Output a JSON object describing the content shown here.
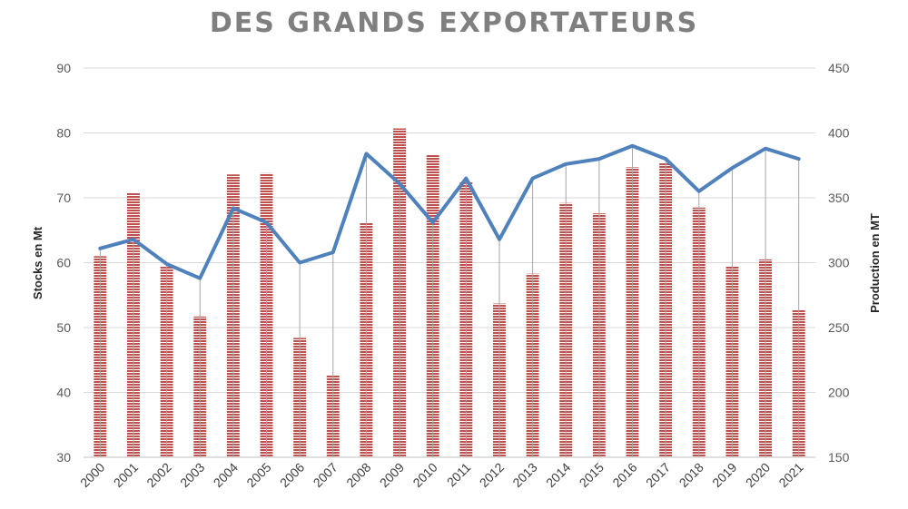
{
  "chart_data": {
    "type": "bar",
    "title": "DES GRANDS EXPORTATEURS",
    "ylabel": "Stocks en Mt",
    "y2label": "Production  en MT",
    "ylim": [
      30,
      90
    ],
    "y2lim": [
      150,
      450
    ],
    "y_ticks": [
      "30",
      "40",
      "50",
      "60",
      "70",
      "80",
      "90"
    ],
    "y2_ticks": [
      "150",
      "200",
      "250",
      "300",
      "350",
      "400",
      "450"
    ],
    "categories": [
      "2000",
      "2001",
      "2002",
      "2003",
      "2004",
      "2005",
      "2006",
      "2007",
      "2008",
      "2009",
      "2010",
      "2011",
      "2012",
      "2013",
      "2014",
      "2015",
      "2016",
      "2017",
      "2018",
      "2019",
      "2020",
      "2021"
    ],
    "series": [
      {
        "type": "bar",
        "axis": "left",
        "color": "#c0504d",
        "values": [
          61,
          70.7,
          59.5,
          51.7,
          73.6,
          73.8,
          48.4,
          42.7,
          66.1,
          80.7,
          76.7,
          72.4,
          53.7,
          58.3,
          69.2,
          67.6,
          74.7,
          75.4,
          68.5,
          59.5,
          60.5,
          52.8
        ]
      },
      {
        "type": "line",
        "axis": "right",
        "color": "#4f81bd",
        "values": [
          311,
          318,
          299,
          288,
          342,
          331,
          300,
          308,
          384,
          361,
          331,
          365,
          318,
          365,
          376,
          380,
          390,
          380,
          355,
          373,
          388,
          380
        ]
      }
    ],
    "grid": true
  }
}
